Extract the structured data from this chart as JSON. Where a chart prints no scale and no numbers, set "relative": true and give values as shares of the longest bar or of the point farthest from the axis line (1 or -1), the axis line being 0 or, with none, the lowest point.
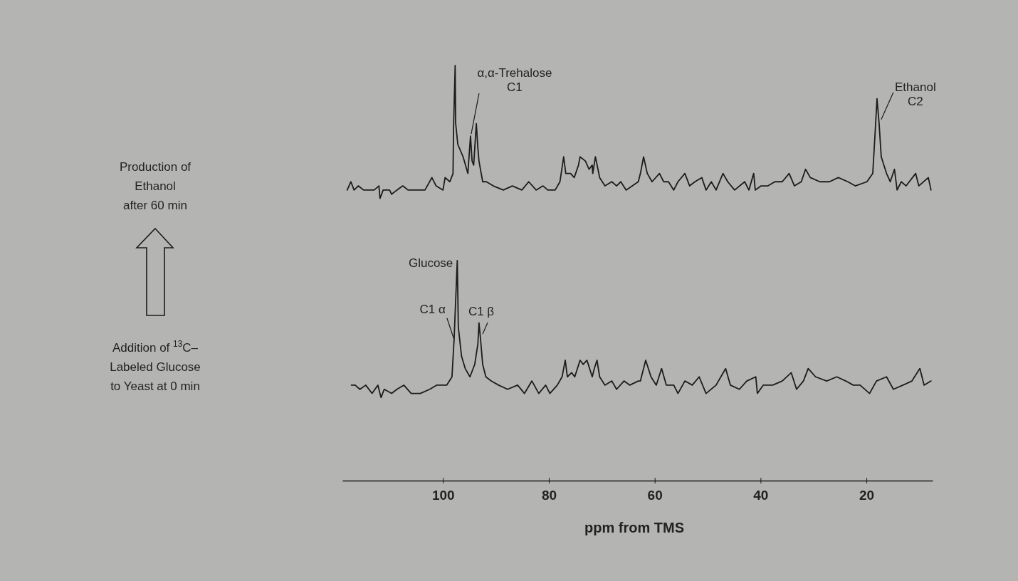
{
  "chart_data": {
    "type": "line",
    "relative": true,
    "xlim": [
      119,
      7.5
    ],
    "xticks": [
      100,
      80,
      60,
      40,
      20
    ],
    "xlabel": "ppm from TMS",
    "annotations": [
      "Production of\nEthanol\nafter 60 min",
      "Addition of $^{13}$C–\nLabeled Glucose\nto Yeast at 0 min",
      {
        "text": "α,α-Trehalose\nC1",
        "x": 94.8,
        "y": 0.83
      },
      {
        "text": "Ethanol\nC2",
        "x": 17.2,
        "y": 0.87
      },
      {
        "text": "Glucose",
        "x": 97.3,
        "y": 0.53
      },
      {
        "text": "C1 α",
        "x": 97.9,
        "y": 0.34
      },
      {
        "text": "C1 β",
        "x": 92.5,
        "y": 0.35
      }
    ],
    "series": [
      {
        "color": "#1c1c1c",
        "x": [
          118.1,
          117.4,
          116.8,
          116.0,
          115.0,
          114.1,
          113.0,
          112.1,
          111.9,
          111.3,
          110.1,
          109.7,
          108.7,
          107.6,
          106.6,
          105.6,
          104.3,
          103.4,
          102.1,
          101.3,
          100.0,
          99.6,
          98.7,
          98.1,
          98.0,
          97.7,
          97.6,
          97.2,
          96.2,
          95.3,
          94.8,
          94.5,
          94.2,
          94.0,
          93.7,
          93.4,
          93.2,
          92.5,
          91.8,
          90.5,
          88.6,
          86.9,
          85.1,
          83.8,
          82.4,
          81.1,
          80.2,
          78.8,
          77.9,
          77.2,
          76.8,
          75.9,
          75.2,
          74.4,
          74.1,
          73.1,
          72.4,
          71.8,
          71.7,
          71.2,
          70.4,
          69.4,
          68.1,
          67.2,
          66.4,
          65.4,
          63.1,
          62.7,
          62.1,
          61.4,
          60.5,
          59.1,
          58.3,
          57.4,
          56.4,
          55.6,
          54.3,
          53.4,
          52.4,
          51.1,
          50.3,
          49.3,
          48.4,
          47.1,
          46.2,
          44.9,
          43.0,
          42.2,
          41.3,
          41.0,
          39.9,
          38.6,
          37.3,
          35.9,
          34.6,
          33.6,
          32.3,
          31.5,
          30.6,
          28.8,
          27.0,
          25.3,
          23.5,
          22.1,
          19.9,
          18.8,
          18.3,
          18.0,
          17.6,
          17.2,
          16.2,
          15.5,
          14.7,
          14.2,
          13.4,
          12.5,
          10.7,
          10.1,
          8.3,
          7.8
        ],
        "values": [
          0.7,
          0.72,
          0.7,
          0.71,
          0.7,
          0.7,
          0.7,
          0.71,
          0.68,
          0.7,
          0.7,
          0.69,
          0.7,
          0.71,
          0.7,
          0.7,
          0.7,
          0.7,
          0.73,
          0.71,
          0.7,
          0.73,
          0.72,
          0.74,
          0.85,
          1,
          0.86,
          0.81,
          0.78,
          0.74,
          0.83,
          0.77,
          0.76,
          0.8,
          0.86,
          0.8,
          0.77,
          0.72,
          0.72,
          0.71,
          0.7,
          0.71,
          0.7,
          0.72,
          0.7,
          0.71,
          0.7,
          0.7,
          0.72,
          0.78,
          0.74,
          0.74,
          0.73,
          0.76,
          0.78,
          0.77,
          0.75,
          0.76,
          0.74,
          0.78,
          0.73,
          0.71,
          0.72,
          0.71,
          0.72,
          0.7,
          0.72,
          0.74,
          0.78,
          0.74,
          0.72,
          0.74,
          0.72,
          0.72,
          0.7,
          0.72,
          0.74,
          0.71,
          0.72,
          0.73,
          0.7,
          0.72,
          0.7,
          0.74,
          0.72,
          0.7,
          0.72,
          0.7,
          0.74,
          0.7,
          0.71,
          0.71,
          0.72,
          0.72,
          0.74,
          0.71,
          0.72,
          0.75,
          0.73,
          0.72,
          0.72,
          0.73,
          0.72,
          0.71,
          0.72,
          0.74,
          0.85,
          0.92,
          0.86,
          0.78,
          0.74,
          0.72,
          0.75,
          0.7,
          0.72,
          0.71,
          0.74,
          0.71,
          0.73,
          0.7
        ]
      },
      {
        "color": "#1c1c1c",
        "x": [
          117.3,
          116.6,
          115.7,
          114.6,
          113.4,
          112.3,
          111.7,
          111.1,
          109.7,
          108.7,
          107.4,
          106.0,
          104.3,
          102.5,
          101.2,
          99.3,
          98.3,
          97.9,
          97.3,
          97.1,
          96.5,
          95.8,
          94.9,
          94.0,
          93.4,
          93.2,
          92.9,
          92.5,
          91.9,
          90.9,
          89.5,
          87.8,
          85.9,
          84.6,
          83.2,
          81.9,
          80.6,
          79.8,
          78.4,
          77.5,
          76.9,
          76.5,
          75.7,
          75.1,
          74.1,
          73.5,
          72.8,
          71.8,
          71.4,
          70.9,
          70.4,
          69.4,
          68.1,
          67.2,
          65.8,
          64.7,
          63.1,
          62.7,
          61.7,
          60.7,
          59.7,
          58.7,
          57.8,
          56.4,
          55.6,
          54.3,
          52.9,
          51.6,
          50.3,
          48.4,
          46.6,
          45.7,
          44.0,
          42.6,
          40.9,
          40.6,
          39.5,
          37.7,
          35.9,
          34.2,
          33.2,
          31.9,
          31.0,
          29.6,
          27.5,
          25.6,
          23.9,
          22.5,
          21.2,
          19.4,
          18.1,
          16.2,
          14.9,
          13.1,
          11.4,
          9.9,
          9.1,
          7.8
        ],
        "values": [
          0.23,
          0.23,
          0.22,
          0.23,
          0.21,
          0.23,
          0.2,
          0.22,
          0.21,
          0.22,
          0.23,
          0.21,
          0.21,
          0.22,
          0.23,
          0.23,
          0.25,
          0.34,
          0.53,
          0.37,
          0.3,
          0.27,
          0.25,
          0.28,
          0.33,
          0.38,
          0.34,
          0.28,
          0.25,
          0.24,
          0.23,
          0.22,
          0.23,
          0.21,
          0.24,
          0.21,
          0.23,
          0.21,
          0.23,
          0.25,
          0.29,
          0.25,
          0.26,
          0.25,
          0.29,
          0.28,
          0.29,
          0.25,
          0.27,
          0.29,
          0.25,
          0.23,
          0.24,
          0.22,
          0.24,
          0.23,
          0.24,
          0.24,
          0.29,
          0.25,
          0.23,
          0.27,
          0.23,
          0.23,
          0.21,
          0.24,
          0.23,
          0.25,
          0.21,
          0.23,
          0.27,
          0.23,
          0.22,
          0.24,
          0.25,
          0.21,
          0.23,
          0.23,
          0.24,
          0.26,
          0.22,
          0.24,
          0.27,
          0.25,
          0.24,
          0.25,
          0.24,
          0.23,
          0.23,
          0.21,
          0.24,
          0.25,
          0.22,
          0.23,
          0.24,
          0.27,
          0.23,
          0.24
        ]
      }
    ]
  }
}
